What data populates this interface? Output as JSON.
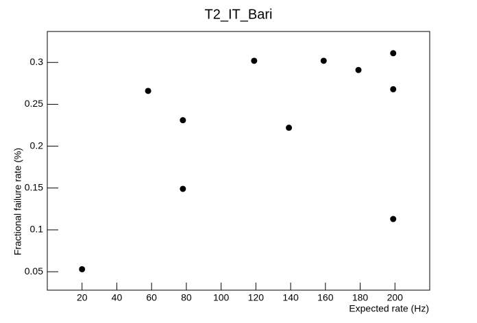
{
  "chart_data": {
    "type": "scatter",
    "title": "T2_IT_Bari",
    "x_label": "Expected rate (Hz)",
    "y_label": "Fractional failure rate (%)",
    "x": [
      20,
      58,
      78,
      78,
      119,
      139,
      159,
      179,
      199,
      199,
      199
    ],
    "values": [
      0.053,
      0.266,
      0.231,
      0.149,
      0.302,
      0.222,
      0.302,
      0.291,
      0.311,
      0.268,
      0.113
    ],
    "color": "#000000",
    "xlim": [
      0,
      220
    ],
    "xticks": [
      20,
      40,
      60,
      80,
      100,
      120,
      140,
      160,
      180,
      200
    ],
    "ylim": [
      0.028,
      0.337
    ],
    "yticks": [
      0.05,
      0.1,
      0.15,
      0.2,
      0.25,
      0.3
    ],
    "grid": false
  }
}
